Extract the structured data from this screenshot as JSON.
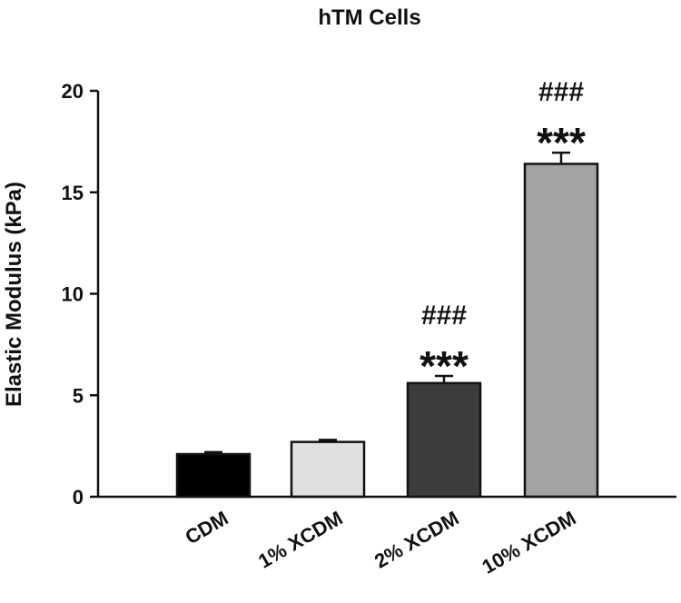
{
  "chart_data": {
    "type": "bar",
    "title": "hTM Cells",
    "xlabel": "",
    "ylabel": "Elastic Modulus (kPa)",
    "ylim": [
      0,
      20
    ],
    "yticks": [
      0,
      5,
      10,
      15,
      20
    ],
    "categories": [
      "CDM",
      "1% XCDM",
      "2% XCDM",
      "10% XCDM"
    ],
    "values": [
      2.1,
      2.7,
      5.6,
      16.4
    ],
    "errors": [
      0.1,
      0.1,
      0.35,
      0.55
    ],
    "colors": [
      "#000000",
      "#e0e0e0",
      "#3c3c3c",
      "#a3a3a3"
    ],
    "annotations": [
      {
        "category": "2% XCDM",
        "stars": "***",
        "hash": "###"
      },
      {
        "category": "10% XCDM",
        "stars": "***",
        "hash": "###"
      }
    ],
    "grid": false,
    "legend": "none"
  }
}
